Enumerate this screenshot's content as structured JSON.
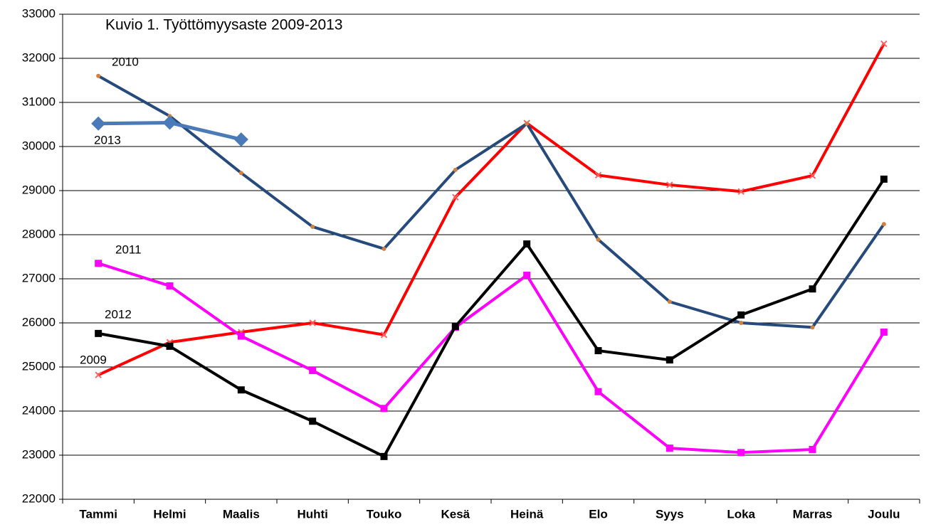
{
  "chart_data": {
    "type": "line",
    "title": "Kuvio 1. Työttömyysaste 2009-2013",
    "categories": [
      "Tammi",
      "Helmi",
      "Maalis",
      "Huhti",
      "Touko",
      "Kesä",
      "Heinä",
      "Elo",
      "Syys",
      "Loka",
      "Marras",
      "Joulu"
    ],
    "series": [
      {
        "name": "2009",
        "color": "#ff0000",
        "values": [
          24820,
          25560,
          25790,
          26000,
          25730,
          28850,
          30530,
          29350,
          29130,
          28980,
          29340,
          32330
        ]
      },
      {
        "name": "2010",
        "color": "#254a7b",
        "values": [
          31600,
          30690,
          29400,
          28180,
          27680,
          29470,
          30520,
          27890,
          26480,
          26000,
          25900,
          28240
        ]
      },
      {
        "name": "2011",
        "color": "#ff00ff",
        "values": [
          27350,
          26840,
          25700,
          24920,
          24060,
          25900,
          27080,
          24440,
          23160,
          23060,
          23130,
          25790
        ]
      },
      {
        "name": "2012",
        "color": "#000000",
        "values": [
          25760,
          25470,
          24480,
          23770,
          22970,
          25920,
          27790,
          25370,
          25160,
          26180,
          26770,
          29260
        ]
      },
      {
        "name": "2013",
        "color": "#4a7ab8",
        "values": [
          30520,
          30540,
          30160,
          null,
          null,
          null,
          null,
          null,
          null,
          null,
          null,
          null
        ]
      }
    ],
    "ylim": [
      22000,
      33000
    ],
    "yticks": [
      22000,
      23000,
      24000,
      25000,
      26000,
      27000,
      28000,
      29000,
      30000,
      31000,
      32000,
      33000
    ],
    "grid": true
  }
}
